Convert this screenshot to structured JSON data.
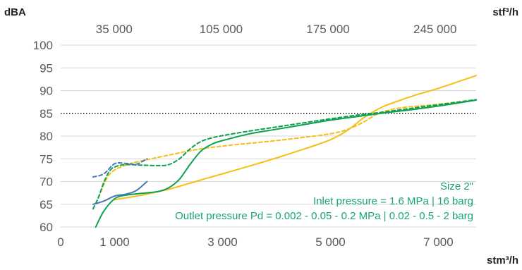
{
  "chart_data": {
    "type": "line",
    "y_unit": "dBA",
    "x_unit": "stm³/h",
    "x2_unit": "stf³/h",
    "xlim": [
      0,
      7700
    ],
    "ylim": [
      60,
      100
    ],
    "y_ticks": [
      "60",
      "65",
      "70",
      "75",
      "80",
      "85",
      "90",
      "95",
      "100"
    ],
    "x_ticks": [
      {
        "value": 0,
        "label": "0"
      },
      {
        "value": 1000,
        "label": "1 000"
      },
      {
        "value": 3000,
        "label": "3 000"
      },
      {
        "value": 5000,
        "label": "5 000"
      },
      {
        "value": 7000,
        "label": "7 000"
      }
    ],
    "x2_ticks": [
      {
        "value": 991,
        "label": "35 000"
      },
      {
        "value": 2973,
        "label": "105 000"
      },
      {
        "value": 4955,
        "label": "175 000"
      },
      {
        "value": 6938,
        "label": "245 000"
      }
    ],
    "reference_line": {
      "y": 85,
      "style": "dotted",
      "color": "#111111"
    },
    "annotations": [
      "Size 2\"",
      "Inlet pressure = 1.6 MPa | 16 barg",
      "Outlet pressure Pd = 0.002 - 0.05 - 0.2 MPa | 0.02 - 0.5 - 2 barg"
    ],
    "annotation_color": "#1aa37a",
    "series": [
      {
        "color": "#f5bf19",
        "dash": "solid",
        "x": [
          1000,
          1500,
          2000,
          2500,
          3000,
          3500,
          4000,
          4500,
          4800,
          5000,
          5200,
          5400,
          5600,
          5800,
          6000,
          6300,
          6600,
          7000,
          7700
        ],
        "y": [
          66,
          67,
          68.3,
          70,
          71.7,
          73.4,
          75.2,
          77.1,
          78.3,
          79.2,
          80.4,
          82,
          83.9,
          85.4,
          86.6,
          87.9,
          89.1,
          90.5,
          93.3
        ]
      },
      {
        "color": "#f5bf19",
        "dash": "dashed",
        "x": [
          700,
          900,
          1200,
          1600,
          2000,
          2500,
          3000,
          3500,
          4000,
          4500,
          5000,
          5300,
          5600,
          5900,
          6300,
          7000,
          7700
        ],
        "y": [
          66.5,
          71.5,
          73.6,
          74.8,
          75.8,
          77,
          77.8,
          78.4,
          79,
          79.7,
          80.5,
          81.4,
          83,
          85,
          86.2,
          87,
          88
        ]
      },
      {
        "color": "#0ea050",
        "dash": "solid",
        "x": [
          650,
          800,
          1000,
          1200,
          1500,
          1800,
          2000,
          2200,
          2400,
          2600,
          2800,
          3000,
          3500,
          4000,
          4500,
          5000,
          5500,
          6000,
          6500,
          7000,
          7700
        ],
        "y": [
          60,
          63.5,
          66.2,
          67,
          67.4,
          67.8,
          68.6,
          70.5,
          73.8,
          76.7,
          78.2,
          79,
          80.5,
          81.5,
          82.5,
          83.5,
          84.3,
          85.1,
          85.8,
          86.6,
          87.9
        ]
      },
      {
        "color": "#0ea050",
        "dash": "dashed",
        "x": [
          600,
          700,
          800,
          900,
          1000,
          1200,
          1500,
          1800,
          2000,
          2200,
          2400,
          2600,
          2800,
          3000,
          3500,
          4000,
          4500,
          5000,
          5500,
          6000,
          6500,
          7000,
          7700
        ],
        "y": [
          64,
          66.5,
          69.8,
          72.2,
          73.2,
          73.7,
          73.6,
          73.5,
          73.7,
          75,
          77.2,
          78.8,
          79.6,
          80.1,
          81.1,
          82,
          82.9,
          83.8,
          84.6,
          85.3,
          86.1,
          86.9,
          88
        ]
      },
      {
        "color": "#4678b5",
        "dash": "solid",
        "x": [
          600,
          800,
          1000,
          1200,
          1400,
          1600
        ],
        "y": [
          65,
          65.7,
          66.8,
          67.2,
          68,
          70
        ]
      },
      {
        "color": "#4678b5",
        "dash": "dashed",
        "x": [
          600,
          800,
          1000,
          1200,
          1400,
          1600
        ],
        "y": [
          71,
          71.7,
          73.9,
          74,
          73.8,
          75
        ]
      }
    ]
  }
}
